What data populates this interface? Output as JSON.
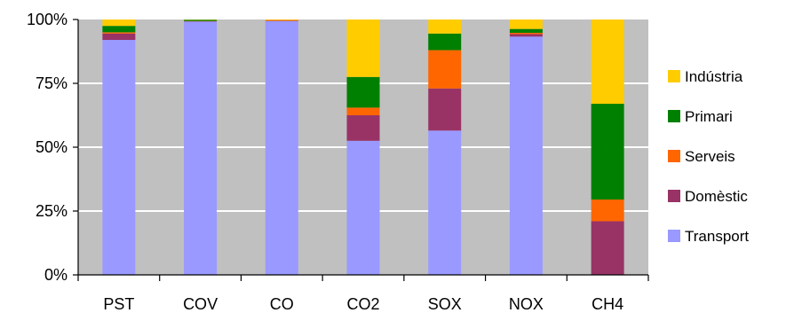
{
  "chart_data": {
    "type": "bar",
    "stacked": true,
    "percent_stacked": true,
    "categories": [
      "PST",
      "COV",
      "CO",
      "CO2",
      "SOX",
      "NOX",
      "CH4"
    ],
    "series": [
      {
        "name": "Transport",
        "color": "#9999FF",
        "values": [
          92.0,
          99.2,
          99.4,
          52.5,
          56.5,
          93.3,
          0.0
        ]
      },
      {
        "name": "Domèstic",
        "color": "#993366",
        "values": [
          2.5,
          0.1,
          0.1,
          10.0,
          16.5,
          1.0,
          21.0
        ]
      },
      {
        "name": "Serveis",
        "color": "#FF6600",
        "values": [
          0.5,
          0.1,
          0.3,
          3.0,
          15.0,
          0.5,
          8.5
        ]
      },
      {
        "name": "Primari",
        "color": "#008000",
        "values": [
          2.5,
          0.5,
          0.0,
          12.0,
          6.5,
          1.5,
          37.5
        ]
      },
      {
        "name": "Indústria",
        "color": "#FFCC00",
        "values": [
          2.5,
          0.1,
          0.2,
          22.5,
          5.5,
          3.7,
          33.0
        ]
      }
    ],
    "legend_order": [
      "Indústria",
      "Primari",
      "Serveis",
      "Domèstic",
      "Transport"
    ],
    "y_ticks": [
      {
        "value": 0,
        "label": "0%"
      },
      {
        "value": 25,
        "label": "25%"
      },
      {
        "value": 50,
        "label": "50%"
      },
      {
        "value": 75,
        "label": "75%"
      },
      {
        "value": 100,
        "label": "100%"
      }
    ],
    "ylim": [
      0,
      100
    ],
    "grid": true,
    "legend_position": "right",
    "plot_background": "#C0C0C0",
    "gridline_color": "#FFFFFF"
  }
}
